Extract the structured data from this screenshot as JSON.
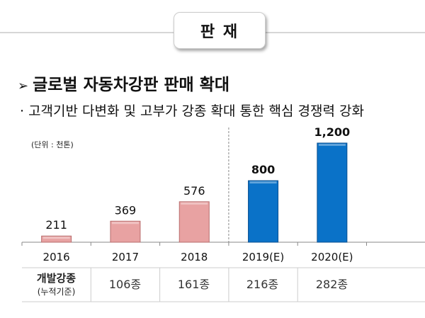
{
  "header": {
    "title": "판 재"
  },
  "heading": {
    "arrow": "➢",
    "text": "글로벌 자동차강판 판매 확대"
  },
  "subheading": "· 고객기반 다변화 및 고부가 강종 확대 통한 핵심 경쟁력 강화",
  "chart_data": {
    "type": "bar",
    "unit_label": "(단위 : 천톤)",
    "categories": [
      "2016",
      "2017",
      "2018",
      "2019(E)",
      "2020(E)"
    ],
    "values": [
      211,
      369,
      576,
      800,
      1200
    ],
    "value_labels": [
      "211",
      "369",
      "576",
      "800",
      "1,200"
    ],
    "estimate": [
      false,
      false,
      false,
      true,
      true
    ],
    "colors": {
      "actual": "#e8a2a2",
      "estimate": "#0a72c8"
    },
    "ylim": [
      145,
      1200
    ]
  },
  "table": {
    "row_label": "개발강종",
    "row_sublabel": "(누적기준)",
    "cells": [
      "106종",
      "161종",
      "216종",
      "282종"
    ]
  }
}
